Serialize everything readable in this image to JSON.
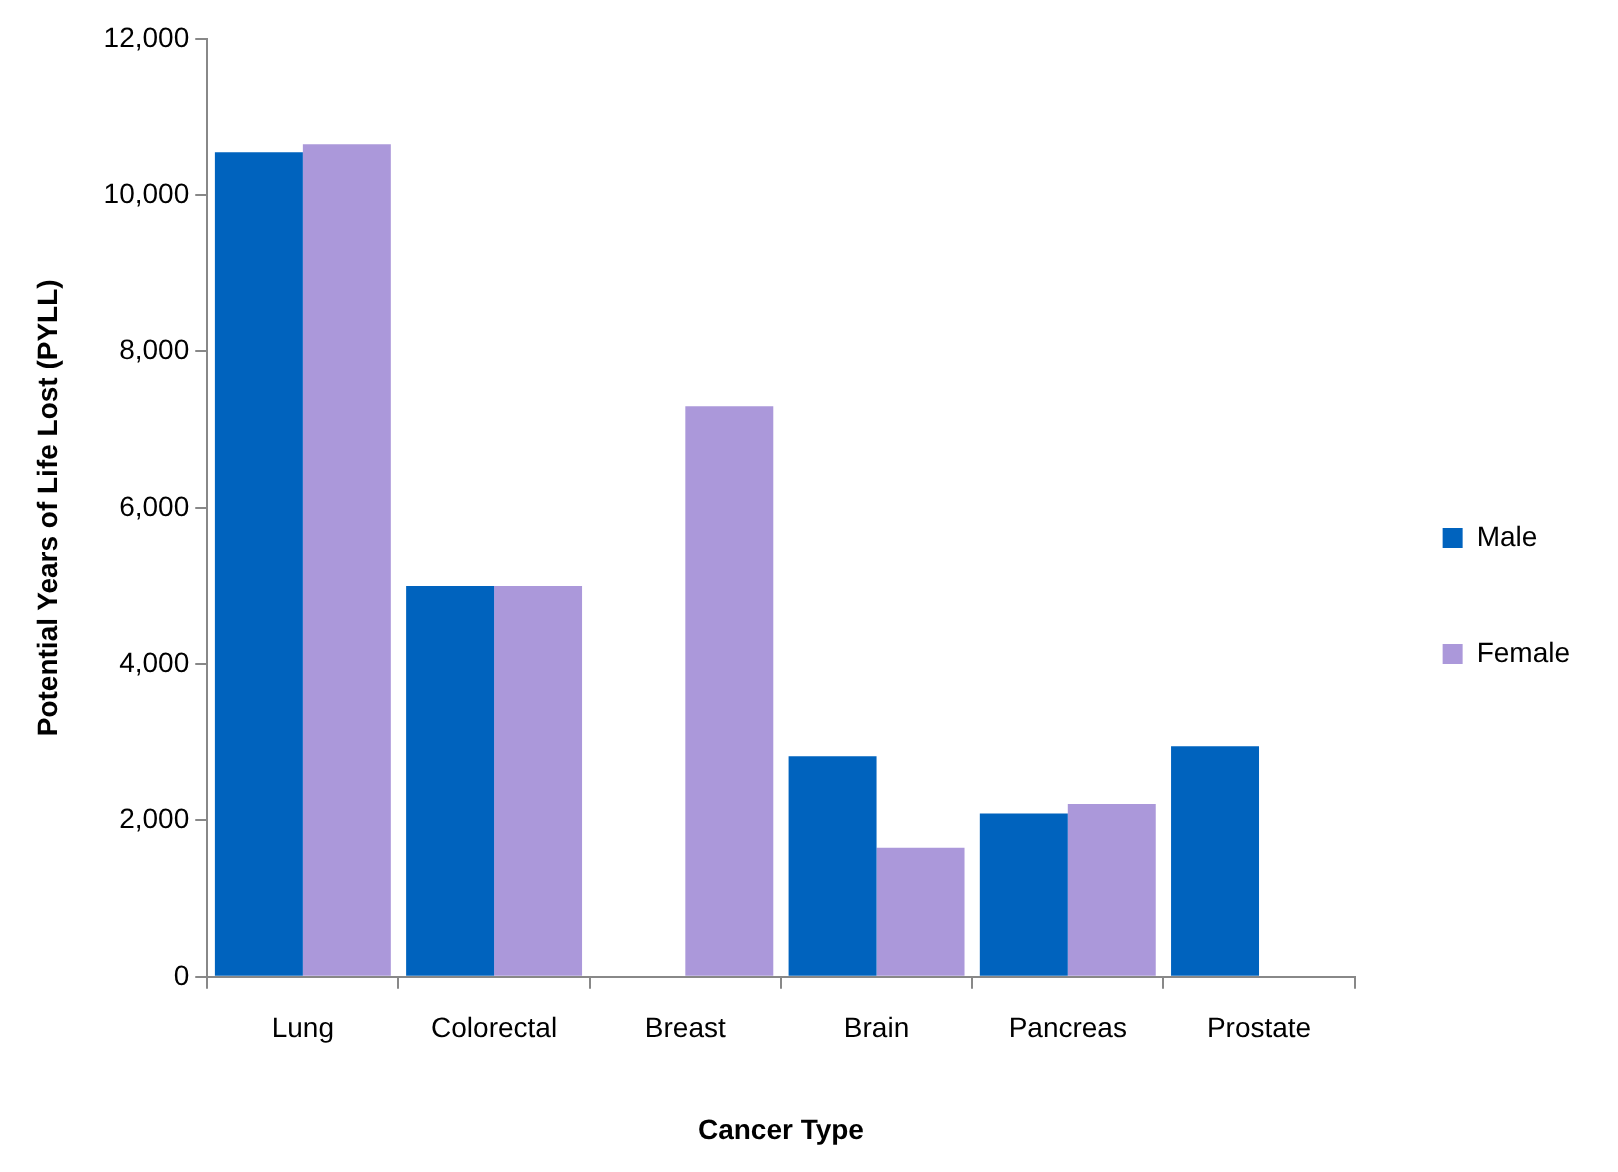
{
  "chart_data": {
    "type": "bar",
    "xlabel": "Cancer Type",
    "ylabel": "Potential Years of Life Lost (PYLL)",
    "categories": [
      "Lung",
      "Colorectal",
      "Breast",
      "Brain",
      "Pancreas",
      "Prostate"
    ],
    "series": [
      {
        "name": "Male",
        "color": "#0063be",
        "values": [
          10550,
          5000,
          null,
          2820,
          2090,
          2950
        ]
      },
      {
        "name": "Female",
        "color": "#ab98da",
        "values": [
          10650,
          5000,
          7300,
          1650,
          2210,
          null
        ]
      }
    ],
    "ylim": [
      0,
      12000
    ],
    "yticks": [
      0,
      {
        "value": 2000,
        "label": "2,000"
      },
      {
        "value": 4000,
        "label": "4,000"
      },
      {
        "value": 6000,
        "label": "6,000"
      },
      {
        "value": 8000,
        "label": "8,000"
      },
      {
        "value": 10000,
        "label": "10,000"
      },
      {
        "value": 12000,
        "label": "12,000"
      }
    ],
    "grid": false,
    "legend": "right"
  }
}
